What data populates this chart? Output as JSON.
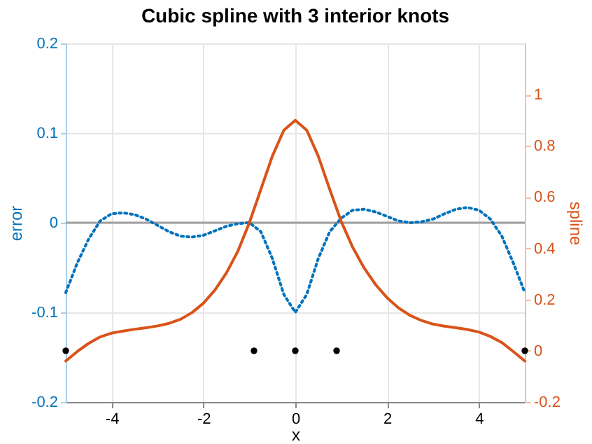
{
  "chart_data": {
    "type": "line",
    "title": "Cubic spline with 3 interior knots",
    "xlabel": "x",
    "ylabel": "error",
    "y2label": "spline",
    "xlim": [
      -5,
      5
    ],
    "xticks": [
      -4,
      -2,
      0,
      2,
      4
    ],
    "ylim": [
      -0.2,
      0.2
    ],
    "yticks": [
      -0.2,
      -0.1,
      0,
      0.1,
      0.2
    ],
    "y2lim": [
      -0.2,
      1.2
    ],
    "y2ticks": [
      -0.2,
      0,
      0.2,
      0.4,
      0.6,
      0.8,
      1
    ],
    "grid": true,
    "ref_lines": [
      {
        "axis": "y",
        "value": 0,
        "color": "#a0a0a0",
        "line_style": "solid"
      }
    ],
    "series": [
      {
        "color": "#0072bd",
        "line_style": "dotted",
        "axis": "y",
        "x": [
          -5,
          -4.75,
          -4.5,
          -4.25,
          -4,
          -3.75,
          -3.5,
          -3.25,
          -3,
          -2.75,
          -2.5,
          -2.25,
          -2,
          -1.75,
          -1.5,
          -1.25,
          -1,
          -0.75,
          -0.5,
          -0.25,
          0,
          0.25,
          0.5,
          0.75,
          1,
          1.25,
          1.5,
          1.75,
          2,
          2.25,
          2.5,
          2.75,
          3,
          3.25,
          3.5,
          3.75,
          4,
          4.25,
          4.5,
          4.75,
          5
        ],
        "values": [
          -0.078,
          -0.045,
          -0.018,
          0.002,
          0.01,
          0.011,
          0.009,
          0.004,
          -0.003,
          -0.01,
          -0.015,
          -0.016,
          -0.014,
          -0.009,
          -0.004,
          -0.001,
          0.0,
          -0.01,
          -0.04,
          -0.08,
          -0.1,
          -0.08,
          -0.04,
          -0.01,
          0.005,
          0.014,
          0.015,
          0.012,
          0.007,
          0.002,
          0.0,
          0.001,
          0.004,
          0.01,
          0.015,
          0.017,
          0.014,
          0.004,
          -0.015,
          -0.045,
          -0.078
        ]
      },
      {
        "color": "#d95319",
        "line_style": "solid",
        "axis": "y2",
        "x": [
          -5,
          -4.75,
          -4.5,
          -4.25,
          -4,
          -3.75,
          -3.5,
          -3.25,
          -3,
          -2.75,
          -2.5,
          -2.25,
          -2,
          -1.75,
          -1.5,
          -1.25,
          -1,
          -0.75,
          -0.5,
          -0.25,
          0,
          0.25,
          0.5,
          0.75,
          1,
          1.25,
          1.5,
          1.75,
          2,
          2.25,
          2.5,
          2.75,
          3,
          3.25,
          3.5,
          3.75,
          4,
          4.25,
          4.5,
          4.75,
          5
        ],
        "values": [
          -0.04,
          -0.003,
          0.029,
          0.054,
          0.069,
          0.077,
          0.084,
          0.09,
          0.097,
          0.107,
          0.123,
          0.149,
          0.186,
          0.237,
          0.304,
          0.389,
          0.5,
          0.63,
          0.76,
          0.861,
          0.9,
          0.861,
          0.76,
          0.63,
          0.505,
          0.404,
          0.323,
          0.258,
          0.207,
          0.167,
          0.138,
          0.118,
          0.104,
          0.096,
          0.09,
          0.083,
          0.073,
          0.056,
          0.032,
          -0.003,
          -0.04
        ]
      },
      {
        "type": "scatter",
        "color": "#000000",
        "marker": "circle",
        "axis": "y2",
        "x": [
          -5,
          -0.9,
          0,
          0.9,
          5
        ],
        "values": [
          0,
          0,
          0,
          0,
          0
        ]
      }
    ]
  }
}
